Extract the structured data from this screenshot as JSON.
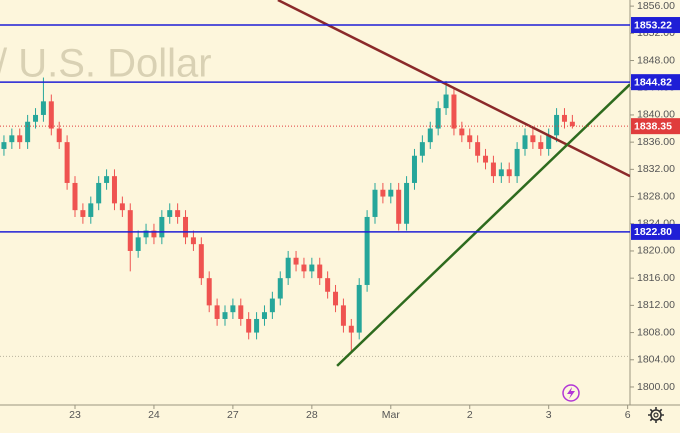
{
  "chart_data": {
    "type": "candlestick",
    "watermark": "/ U.S. Dollar",
    "up_color": "#26a69a",
    "down_color": "#ef5350",
    "x": [
      0.1,
      0.2,
      0.3,
      0.4,
      0.5,
      0.6,
      0.7,
      0.8,
      0.9,
      1.0,
      1.1,
      1.2,
      1.3,
      1.4,
      1.5,
      1.6,
      1.7,
      1.8,
      1.9,
      2.0,
      2.1,
      2.2,
      2.3,
      2.4,
      2.5,
      2.6,
      2.7,
      2.8,
      2.9,
      3.0,
      3.1,
      3.2,
      3.3,
      3.4,
      3.5,
      3.6,
      3.7,
      3.8,
      3.9,
      4.0,
      4.1,
      4.2,
      4.3,
      4.4,
      4.5,
      4.6,
      4.7,
      4.8,
      4.9,
      5.0,
      5.1,
      5.2,
      5.3,
      5.4,
      5.5,
      5.6,
      5.7,
      5.8,
      5.9,
      6.0,
      6.1,
      6.2,
      6.3,
      6.4,
      6.5,
      6.6,
      6.7,
      6.8,
      6.9,
      7.0,
      7.1,
      7.2,
      7.3
    ],
    "open": [
      1835,
      1836,
      1837,
      1836,
      1839,
      1840,
      1842,
      1838,
      1836,
      1830,
      1826,
      1825,
      1827,
      1830,
      1831,
      1827,
      1826,
      1820,
      1822,
      1823,
      1822,
      1825,
      1826,
      1825,
      1822,
      1821,
      1816,
      1812,
      1810,
      1811,
      1812,
      1810,
      1808,
      1810,
      1811,
      1813,
      1816,
      1819,
      1818,
      1817,
      1818,
      1816,
      1814,
      1812,
      1809,
      1808,
      1815,
      1825,
      1829,
      1828,
      1829,
      1824,
      1830,
      1834,
      1836,
      1838,
      1841,
      1843,
      1838,
      1837,
      1836,
      1834,
      1833,
      1831,
      1832,
      1831,
      1835,
      1837,
      1836,
      1835,
      1837,
      1840,
      1839
    ],
    "high": [
      1837,
      1838,
      1838,
      1840,
      1841,
      1845.5,
      1843,
      1839,
      1837,
      1831,
      1827,
      1828,
      1831,
      1832,
      1832,
      1828,
      1827,
      1823,
      1824,
      1824,
      1826,
      1827,
      1827,
      1826,
      1823,
      1822,
      1817,
      1813,
      1812,
      1813,
      1813,
      1811,
      1811,
      1812,
      1814,
      1817,
      1820,
      1820,
      1819,
      1819,
      1819,
      1817,
      1815,
      1813,
      1810,
      1816,
      1826,
      1830,
      1830,
      1830,
      1830,
      1831,
      1835,
      1837,
      1839,
      1842,
      1845,
      1844,
      1839,
      1838,
      1837,
      1835,
      1834,
      1833,
      1833,
      1836,
      1838,
      1838,
      1837,
      1838,
      1841,
      1841,
      1840
    ],
    "low": [
      1834,
      1835,
      1835,
      1835,
      1838,
      1839,
      1837,
      1835,
      1829,
      1825,
      1824,
      1824,
      1826,
      1829,
      1826,
      1825,
      1817,
      1819,
      1821,
      1821,
      1821,
      1824,
      1824,
      1821,
      1820,
      1815,
      1811,
      1809,
      1809,
      1810,
      1809,
      1807,
      1807,
      1809,
      1810,
      1812,
      1815,
      1817,
      1816,
      1816,
      1815,
      1813,
      1811,
      1808,
      1805,
      1807,
      1814,
      1824,
      1827,
      1827,
      1823,
      1823,
      1829,
      1833,
      1835,
      1837,
      1840,
      1837,
      1836,
      1835,
      1833,
      1832,
      1830,
      1830,
      1830,
      1830,
      1834,
      1835,
      1834,
      1834,
      1836,
      1838,
      1838
    ],
    "close": [
      1836,
      1837,
      1836,
      1839,
      1840,
      1842,
      1838,
      1836,
      1830,
      1826,
      1825,
      1827,
      1830,
      1831,
      1827,
      1826,
      1820,
      1822,
      1823,
      1822,
      1825,
      1826,
      1825,
      1822,
      1821,
      1816,
      1812,
      1810,
      1811,
      1812,
      1810,
      1808,
      1810,
      1811,
      1813,
      1816,
      1819,
      1818,
      1817,
      1818,
      1816,
      1814,
      1812,
      1809,
      1808,
      1815,
      1825,
      1829,
      1828,
      1829,
      1824,
      1830,
      1834,
      1836,
      1838,
      1841,
      1843,
      1838,
      1837,
      1836,
      1834,
      1833,
      1831,
      1832,
      1831,
      1835,
      1837,
      1836,
      1835,
      1837,
      1840,
      1839,
      1838.35
    ],
    "xlim": [
      0.05,
      8.03
    ],
    "ylim": [
      1797.35,
      1856.9
    ],
    "xticks": [
      {
        "value": 1,
        "label": "23"
      },
      {
        "value": 2,
        "label": "24"
      },
      {
        "value": 3,
        "label": "27"
      },
      {
        "value": 4,
        "label": "28"
      },
      {
        "value": 5,
        "label": "Mar"
      },
      {
        "value": 6,
        "label": "2"
      },
      {
        "value": 7,
        "label": "3"
      },
      {
        "value": 8,
        "label": "6"
      }
    ],
    "yticks": [
      {
        "value": 1800,
        "label": "1800.00"
      },
      {
        "value": 1804,
        "label": "1804.00"
      },
      {
        "value": 1808,
        "label": "1808.00"
      },
      {
        "value": 1812,
        "label": "1812.00"
      },
      {
        "value": 1816,
        "label": "1816.00"
      },
      {
        "value": 1820,
        "label": "1820.00"
      },
      {
        "value": 1824,
        "label": "1824.00"
      },
      {
        "value": 1828,
        "label": "1828.00"
      },
      {
        "value": 1832,
        "label": "1832.00"
      },
      {
        "value": 1836,
        "label": "1836.00"
      },
      {
        "value": 1840,
        "label": "1840.00"
      },
      {
        "value": 1844,
        "label": "1844.00"
      },
      {
        "value": 1848,
        "label": "1848.00"
      },
      {
        "value": 1852,
        "label": "1852.00"
      },
      {
        "value": 1856,
        "label": "1856.00"
      }
    ],
    "level_color": "#1f1fd6",
    "levels": [
      1853.22,
      1844.82,
      {
        "value": 1822.8,
        "label": "1822.80"
      }
    ],
    "last_price_color": "#e03c3c",
    "dotted_level": 1804.5,
    "trendlines": [
      {
        "color": "#8b2a2a",
        "x": [
          3.57,
          8.03
        ],
        "y": [
          1856.9,
          1831.0
        ]
      },
      {
        "color": "#2e6b1e",
        "x": [
          4.32,
          8.03
        ],
        "y": [
          1803.1,
          1844.5
        ]
      }
    ]
  }
}
